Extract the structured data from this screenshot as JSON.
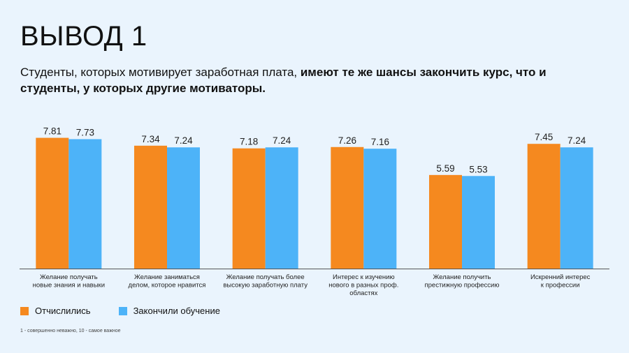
{
  "title": "ВЫВОД 1",
  "subtitle": {
    "normal": "Студенты, которых мотивирует заработная плата, ",
    "bold": "имеют те же шансы закончить курс, что и студенты, у которых другие мотиваторы."
  },
  "footnote": "1 - совершенно неважно, 10 - самое важное",
  "colors": {
    "dropped": "#f5891f",
    "finished": "#4db3f8",
    "axis": "#555555"
  },
  "chart_data": {
    "type": "bar",
    "title": "",
    "xlabel": "",
    "ylabel": "",
    "ylim": [
      0,
      10
    ],
    "grid": false,
    "legend": "bottom-left",
    "categories": [
      [
        "Желание получать",
        "новые знания и навыки"
      ],
      [
        "Желание заниматься",
        "делом, которое нравится"
      ],
      [
        "Желание получать более",
        "высокую заработную плату"
      ],
      [
        "Интерес к изучению",
        "нового в разных проф.",
        "областях"
      ],
      [
        "Желание получить",
        "престижную профессию"
      ],
      [
        "Искренний интерес",
        "к профессии"
      ]
    ],
    "series": [
      {
        "name": "Отчислились",
        "values": [
          7.81,
          7.34,
          7.18,
          7.26,
          5.59,
          7.45
        ]
      },
      {
        "name": "Закончили обучение",
        "values": [
          7.73,
          7.24,
          7.24,
          7.16,
          5.53,
          7.24
        ]
      }
    ]
  }
}
